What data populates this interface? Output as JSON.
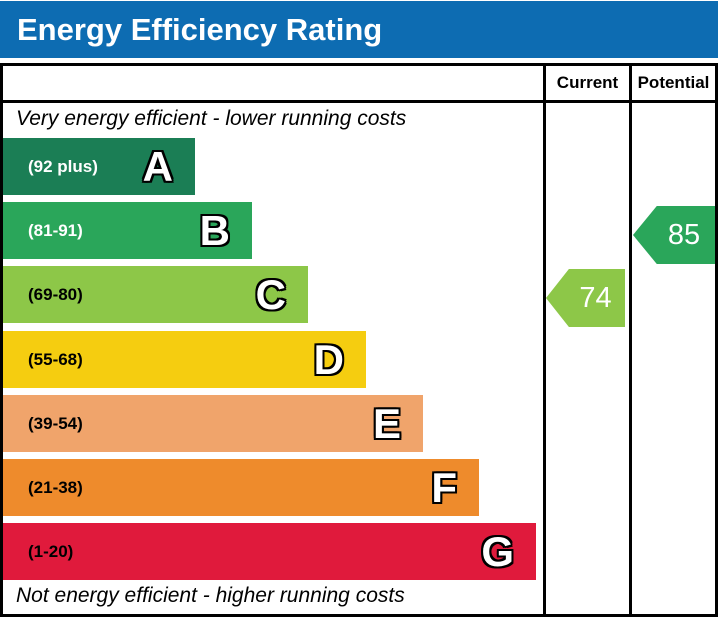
{
  "title": "Energy Efficiency Rating",
  "colors": {
    "header_bg": "#0d6cb2",
    "border": "#000000"
  },
  "columns": {
    "current_label": "Current",
    "potential_label": "Potential"
  },
  "top_note": "Very energy efficient - lower running costs",
  "bottom_note": "Not energy efficient - higher running costs",
  "bands": [
    {
      "letter": "A",
      "range": "(92 plus)",
      "color": "#1b7e55",
      "label_color": "#ffffff"
    },
    {
      "letter": "B",
      "range": "(81-91)",
      "color": "#2aa65a",
      "label_color": "#ffffff"
    },
    {
      "letter": "C",
      "range": "(69-80)",
      "color": "#8dc748",
      "label_color": "#000000"
    },
    {
      "letter": "D",
      "range": "(55-68)",
      "color": "#f5cd10",
      "label_color": "#000000"
    },
    {
      "letter": "E",
      "range": "(39-54)",
      "color": "#f0a46b",
      "label_color": "#000000"
    },
    {
      "letter": "F",
      "range": "(21-38)",
      "color": "#ee8b2c",
      "label_color": "#000000"
    },
    {
      "letter": "G",
      "range": "(1-20)",
      "color": "#e01a3c",
      "label_color": "#000000"
    }
  ],
  "ratings": {
    "current": {
      "value": "74",
      "band": "C",
      "color": "#8dc748"
    },
    "potential": {
      "value": "85",
      "band": "B",
      "color": "#2aa65a"
    }
  },
  "chart_data": {
    "type": "bar",
    "title": "Energy Efficiency Rating",
    "categories": [
      "A",
      "B",
      "C",
      "D",
      "E",
      "F",
      "G"
    ],
    "band_ranges": [
      "92 plus",
      "81-91",
      "69-80",
      "55-68",
      "39-54",
      "21-38",
      "1-20"
    ],
    "band_colors": [
      "#1b7e55",
      "#2aa65a",
      "#8dc748",
      "#f5cd10",
      "#f0a46b",
      "#ee8b2c",
      "#e01a3c"
    ],
    "columns": [
      "Current",
      "Potential"
    ],
    "markers": [
      {
        "name": "Current",
        "value": 74,
        "band": "C"
      },
      {
        "name": "Potential",
        "value": 85,
        "band": "B"
      }
    ],
    "top_annotation": "Very energy efficient - lower running costs",
    "bottom_annotation": "Not energy efficient - higher running costs",
    "value_range": [
      1,
      100
    ],
    "orientation": "horizontal"
  }
}
